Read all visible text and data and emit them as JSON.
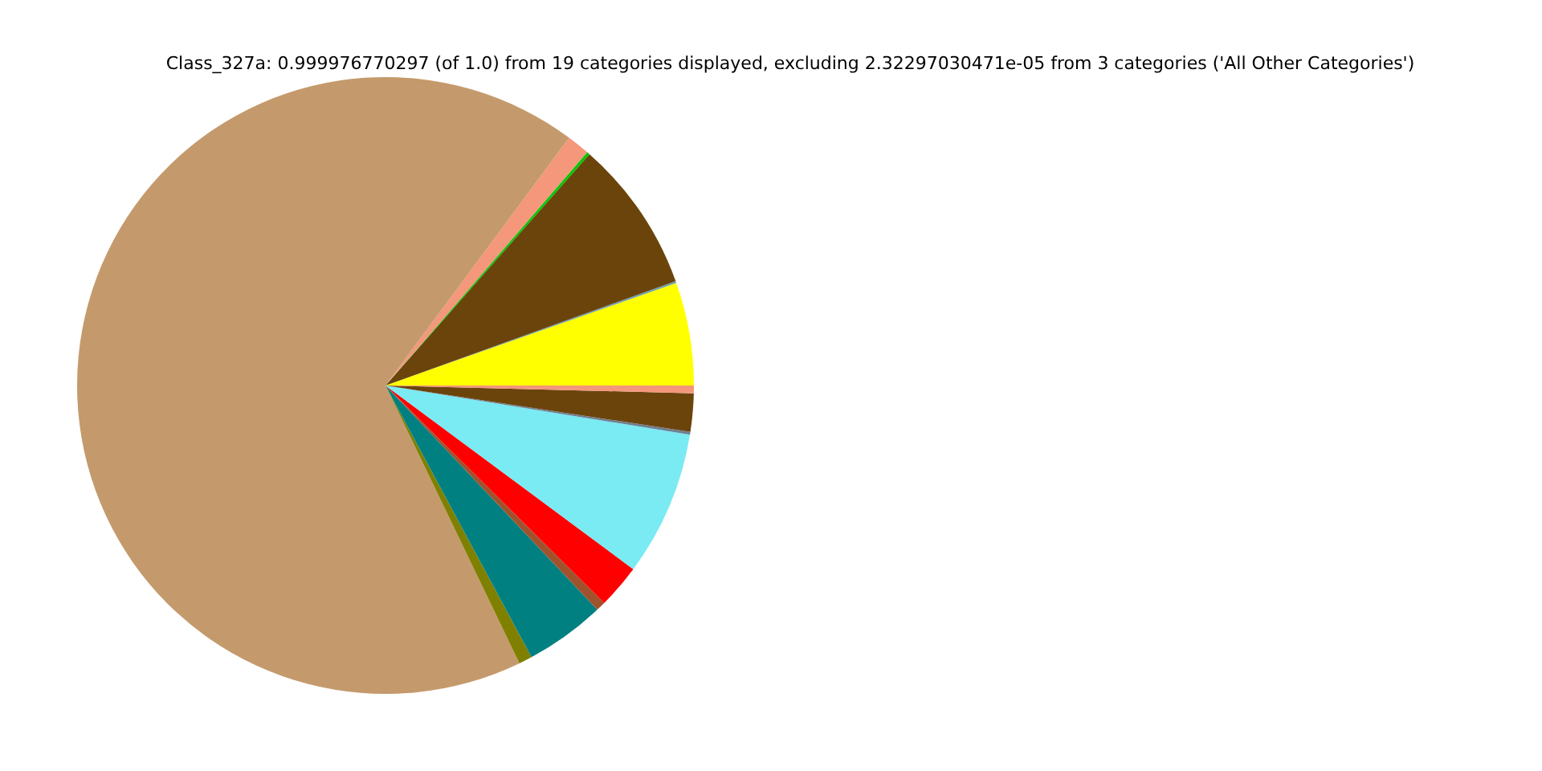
{
  "chart_data": {
    "type": "pie",
    "title": "Class_327a: 0.999976770297 (of 1.0) from 19 categories displayed, excluding 2.32297030471e-05 from 3 categories ('All Other Categories')",
    "categories": [
      null,
      null,
      null,
      null,
      null,
      null,
      null,
      null,
      null,
      null,
      null,
      null,
      null,
      null
    ],
    "values": [
      5.4,
      0.1,
      8.0,
      0.15,
      1.2,
      67.3,
      0.7,
      4.2,
      0.5,
      2.3,
      7.6,
      0.15,
      2.0,
      0.4
    ],
    "colors": [
      "#ffff00",
      "#6fa0b0",
      "#6b440c",
      "#00c800",
      "#f4977a",
      "#c49a6c",
      "#808000",
      "#008080",
      "#a0522d",
      "#ff0000",
      "#7aeaf3",
      "#708090",
      "#6b440c",
      "#f4977a"
    ]
  }
}
